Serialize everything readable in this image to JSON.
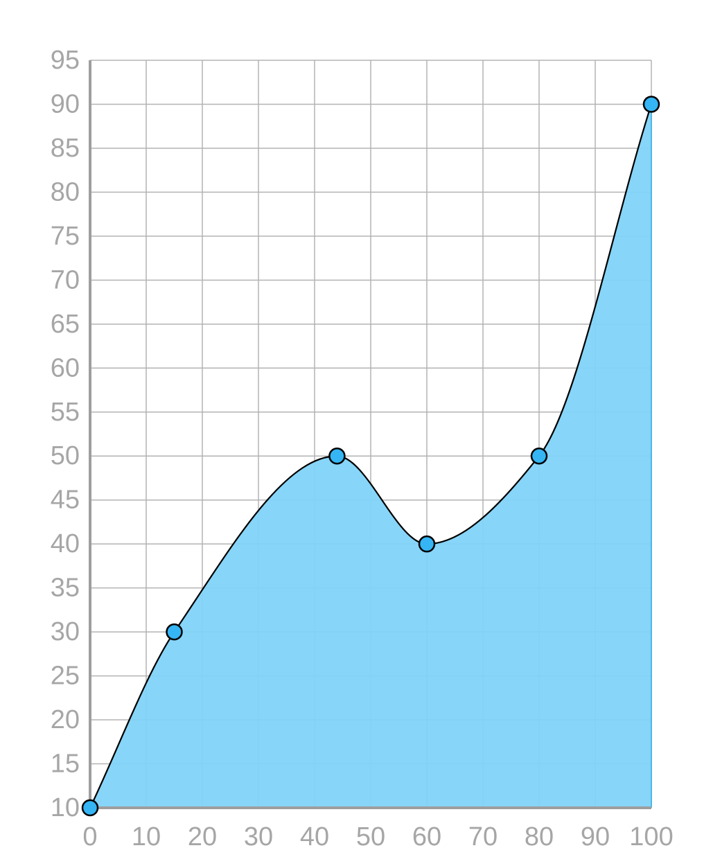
{
  "chart_data": {
    "type": "area",
    "title": "",
    "xlabel": "",
    "ylabel": "",
    "xlim": [
      0,
      100
    ],
    "ylim": [
      10,
      95
    ],
    "xticks": [
      0,
      10,
      20,
      30,
      40,
      50,
      60,
      70,
      80,
      90,
      100
    ],
    "yticks": [
      10,
      15,
      20,
      25,
      30,
      35,
      40,
      45,
      50,
      55,
      60,
      65,
      70,
      75,
      80,
      85,
      90,
      95
    ],
    "grid": true,
    "curve": "smooth",
    "series": [
      {
        "points": [
          {
            "x": 0,
            "y": 10
          },
          {
            "x": 15,
            "y": 30
          },
          {
            "x": 44,
            "y": 50
          },
          {
            "x": 60,
            "y": 40
          },
          {
            "x": 80,
            "y": 50
          },
          {
            "x": 100,
            "y": 90
          }
        ]
      }
    ],
    "colors": {
      "fill": "#81d3f8",
      "point": "#35b5f3",
      "stroke": "#000000",
      "grid": "#b3b3b3",
      "axis": "#9e9e9e",
      "tick_text": "#a6a6a6"
    }
  }
}
